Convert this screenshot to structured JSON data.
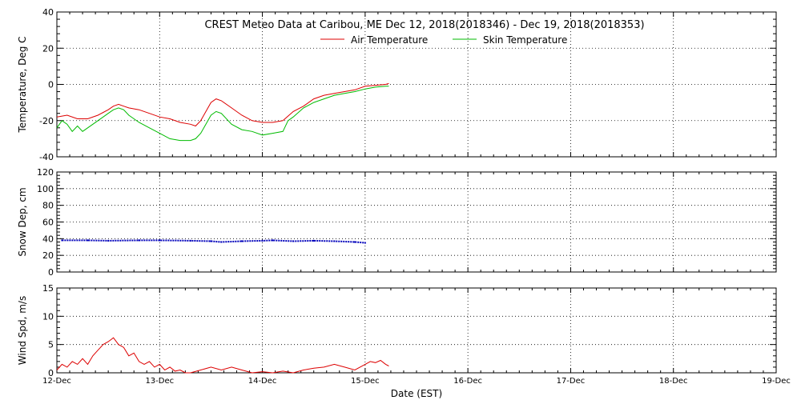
{
  "chart_data": {
    "type": "line",
    "title": "CREST Meteo Data at Caribou, ME   Dec 12, 2018(2018346) - Dec 19, 2018(2018353)",
    "xlabel": "Date (EST)",
    "x_ticks": [
      "12-Dec",
      "13-Dec",
      "14-Dec",
      "15-Dec",
      "16-Dec",
      "17-Dec",
      "18-Dec",
      "19-Dec"
    ],
    "x_range_days": [
      0,
      7
    ],
    "grid": true,
    "colors": {
      "air": "#dd0000",
      "skin": "#00bb00",
      "snow": "#0000bb",
      "wind": "#dd0000"
    },
    "panels": [
      {
        "id": "temperature",
        "ylabel": "Temperature, Deg C",
        "ylim": [
          -40,
          40
        ],
        "yticks": [
          -40,
          -20,
          0,
          20,
          40
        ],
        "legend": {
          "position": "top-center",
          "entries": [
            "Air Temperature",
            "Skin Temperature"
          ]
        },
        "series": [
          {
            "name": "Air Temperature",
            "color_key": "air",
            "x": [
              0,
              0.1,
              0.2,
              0.3,
              0.4,
              0.5,
              0.55,
              0.6,
              0.65,
              0.7,
              0.8,
              0.9,
              1.0,
              1.1,
              1.2,
              1.3,
              1.35,
              1.4,
              1.5,
              1.55,
              1.6,
              1.7,
              1.8,
              1.9,
              2.0,
              2.1,
              2.2,
              2.3,
              2.4,
              2.5,
              2.6,
              2.7,
              2.8,
              2.9,
              3.0,
              3.1,
              3.2,
              3.23
            ],
            "y": [
              -18,
              -17,
              -19,
              -19,
              -17,
              -14,
              -12,
              -11,
              -12,
              -13,
              -14,
              -16,
              -18,
              -19,
              -21,
              -22,
              -23,
              -20,
              -10,
              -8,
              -9,
              -13,
              -17,
              -20,
              -21,
              -21,
              -20,
              -15,
              -12,
              -8,
              -6,
              -5,
              -4,
              -3,
              -1,
              -0.5,
              0,
              0.5
            ]
          },
          {
            "name": "Skin Temperature",
            "color_key": "skin",
            "x": [
              0,
              0.05,
              0.1,
              0.15,
              0.2,
              0.25,
              0.3,
              0.4,
              0.5,
              0.55,
              0.6,
              0.65,
              0.7,
              0.8,
              0.9,
              1.0,
              1.1,
              1.2,
              1.3,
              1.35,
              1.4,
              1.5,
              1.55,
              1.6,
              1.7,
              1.8,
              1.9,
              2.0,
              2.1,
              2.2,
              2.25,
              2.3,
              2.4,
              2.5,
              2.6,
              2.7,
              2.8,
              2.9,
              3.0,
              3.1,
              3.2,
              3.23
            ],
            "y": [
              -24,
              -20,
              -22,
              -26,
              -23,
              -26,
              -24,
              -20,
              -16,
              -14,
              -13,
              -14,
              -17,
              -21,
              -24,
              -27,
              -30,
              -31,
              -31,
              -30,
              -27,
              -17,
              -15,
              -16,
              -22,
              -25,
              -26,
              -28,
              -27,
              -26,
              -20,
              -18,
              -13,
              -10,
              -8,
              -6,
              -5,
              -4,
              -2.5,
              -1.5,
              -1,
              -1
            ]
          }
        ]
      },
      {
        "id": "snow",
        "ylabel": "Snow Dep, cm",
        "ylim": [
          0,
          120
        ],
        "yticks": [
          0,
          20,
          40,
          60,
          80,
          100,
          120
        ],
        "series": [
          {
            "name": "",
            "color_key": "snow",
            "x": [
              0.05,
              0.3,
              0.5,
              0.8,
              1.0,
              1.3,
              1.5,
              1.6,
              1.8,
              2.0,
              2.1,
              2.3,
              2.5,
              2.7,
              2.9,
              3.0
            ],
            "y": [
              38,
              38,
              37.5,
              38,
              38,
              37.5,
              37,
              36,
              37,
              37.5,
              38,
              37,
              37.5,
              37,
              36,
              35
            ]
          }
        ]
      },
      {
        "id": "wind",
        "ylabel": "Wind Spd, m/s",
        "ylim": [
          0,
          15
        ],
        "yticks": [
          0,
          5,
          10,
          15
        ],
        "series": [
          {
            "name": "",
            "color_key": "wind",
            "x": [
              0,
              0.05,
              0.1,
              0.15,
              0.2,
              0.25,
              0.3,
              0.35,
              0.4,
              0.45,
              0.5,
              0.55,
              0.6,
              0.65,
              0.7,
              0.75,
              0.8,
              0.85,
              0.9,
              0.95,
              1.0,
              1.05,
              1.1,
              1.15,
              1.2,
              1.25,
              1.3,
              1.4,
              1.5,
              1.6,
              1.7,
              1.8,
              1.9,
              2.0,
              2.1,
              2.2,
              2.3,
              2.4,
              2.5,
              2.6,
              2.7,
              2.8,
              2.9,
              3.0,
              3.05,
              3.1,
              3.15,
              3.2,
              3.23
            ],
            "y": [
              0.5,
              1.5,
              1,
              2,
              1.5,
              2.5,
              1.5,
              3,
              4,
              5,
              5.5,
              6.2,
              5,
              4.5,
              3,
              3.5,
              2,
              1.5,
              2,
              1,
              1.5,
              0.5,
              1,
              0.3,
              0.5,
              0,
              0,
              0.5,
              1,
              0.5,
              1,
              0.5,
              0,
              0.2,
              0,
              0.3,
              0,
              0.5,
              0.8,
              1,
              1.5,
              1,
              0.5,
              1.5,
              2,
              1.8,
              2.2,
              1.5,
              1.2
            ]
          }
        ]
      }
    ]
  }
}
